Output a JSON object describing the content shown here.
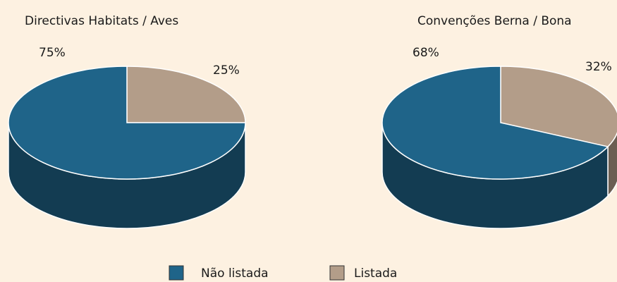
{
  "chart_data": [
    {
      "type": "pie",
      "title": "Directivas Habitats / Aves",
      "categories": [
        "Não listada",
        "Listada"
      ],
      "values": [
        75,
        25
      ],
      "value_labels": [
        "75%",
        "25%"
      ],
      "colors": [
        "#1f6489",
        "#b39d89"
      ]
    },
    {
      "type": "pie",
      "title": "Convenções Berna / Bona",
      "categories": [
        "Não listada",
        "Listada"
      ],
      "values": [
        68,
        32
      ],
      "value_labels": [
        "68%",
        "32%"
      ],
      "colors": [
        "#1f6489",
        "#b39d89"
      ]
    }
  ]
}
